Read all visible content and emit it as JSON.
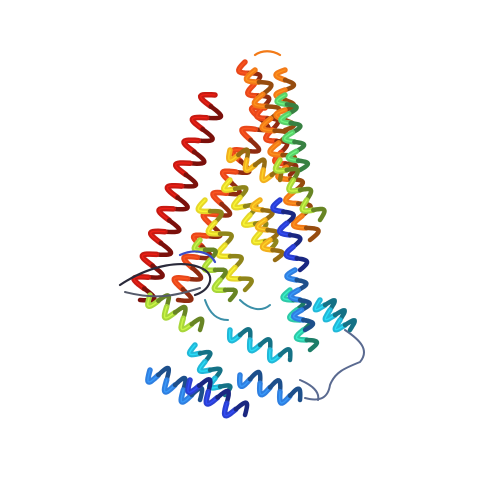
{
  "image": {
    "subject": "protein-ribbon-structure",
    "background_color": "#ffffff",
    "coloring": "rainbow-n-to-c",
    "palette": [
      "#2a3fd0",
      "#2f7fe0",
      "#22b8d8",
      "#2ec9a8",
      "#5ad06a",
      "#a8d63a",
      "#e6d72a",
      "#f2b01e",
      "#f27a18",
      "#e8471a",
      "#c61a12"
    ],
    "coil_colors": {
      "blue": "#3a4cc8",
      "slate": "#5a6a90",
      "dark": "#2a2a3a",
      "teal": "#3b8fa8",
      "gray": "#555a6a"
    }
  }
}
